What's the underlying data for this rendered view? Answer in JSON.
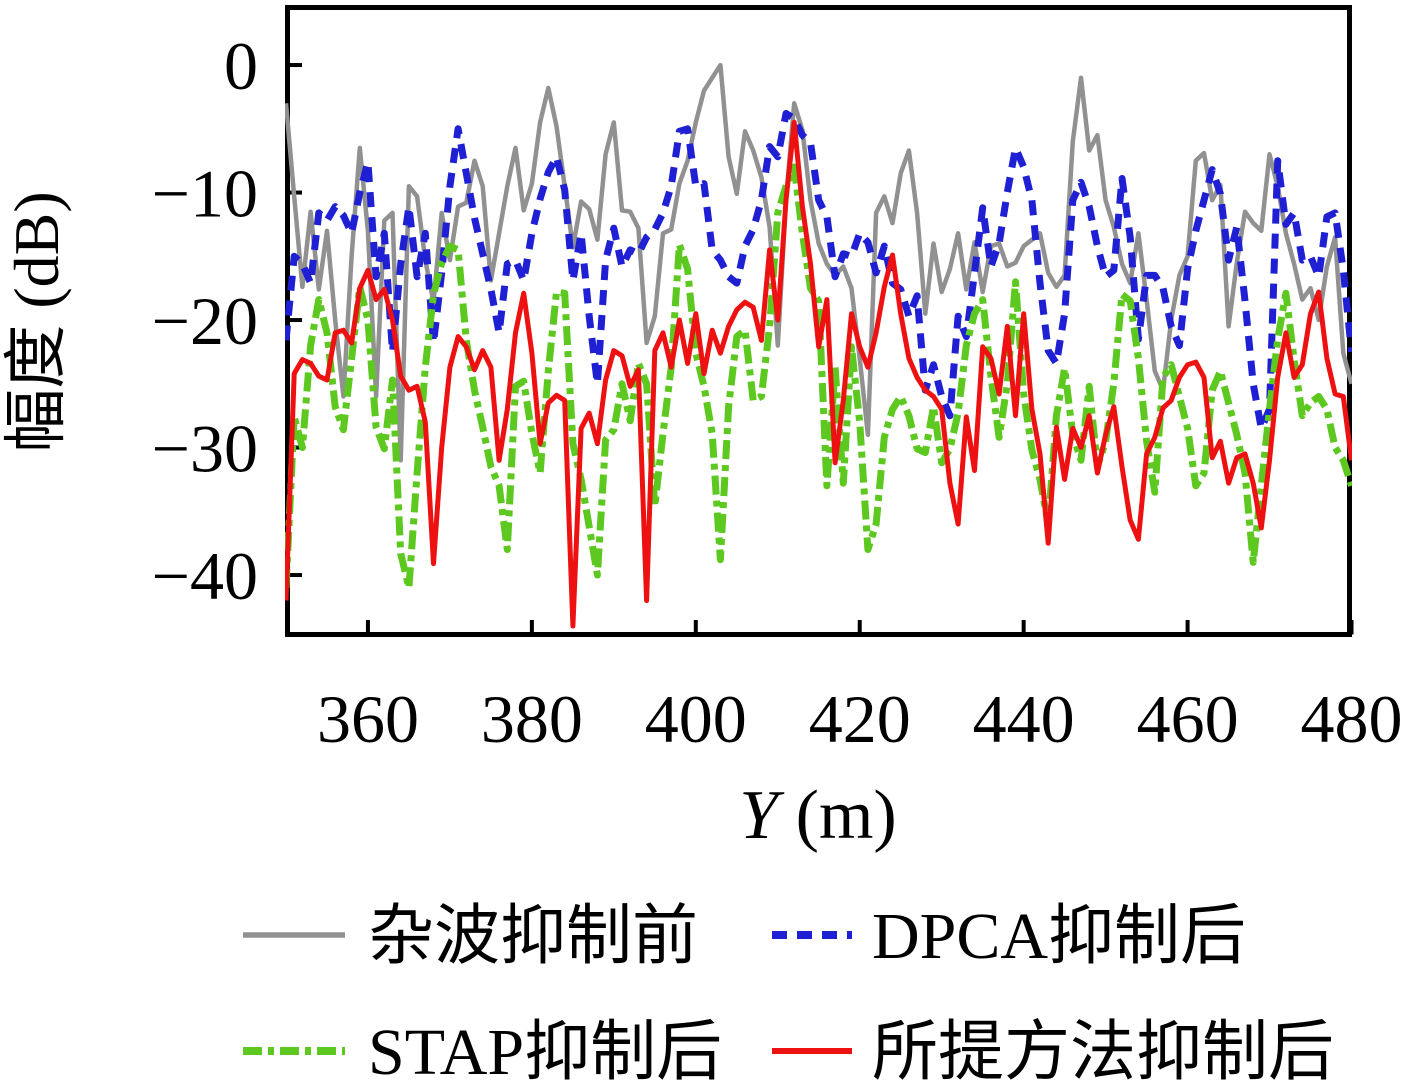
{
  "chart_data": {
    "type": "line",
    "title": "",
    "xlabel_italic": "Y",
    "xlabel_rest": " (m)",
    "ylabel": "幅度 (dB)",
    "xlim": [
      349.88,
      480.06
    ],
    "ylim": [
      -44.86,
      4.71
    ],
    "x_ticks": [
      360,
      380,
      400,
      420,
      440,
      460,
      480
    ],
    "x_tick_labels": [
      "360",
      "380",
      "400",
      "420",
      "440",
      "460",
      "480"
    ],
    "y_ticks": [
      0,
      -10,
      -20,
      -30,
      -40
    ],
    "y_tick_labels": [
      "0",
      "−10",
      "−20",
      "−30",
      "−40"
    ],
    "grid": false,
    "legend_position": "below-axis, 2 columns x 2 rows",
    "x_start": 350,
    "x_step": 1,
    "series": [
      {
        "name": "杂波抑制前",
        "color": "#919191",
        "style": "solid",
        "width": 4.5,
        "values": [
          -3,
          -10.3,
          -17.4,
          -11.5,
          -17.6,
          -13,
          -20,
          -26,
          -15,
          -6.5,
          -13,
          -26,
          -12.2,
          -11.6,
          -31,
          -9.5,
          -10.3,
          -15.3,
          -18.6,
          -11.6,
          -15.3,
          -11.1,
          -10.8,
          -7.5,
          -9.5,
          -16.9,
          -13.2,
          -9.5,
          -6.5,
          -11.4,
          -9.3,
          -4.5,
          -1.8,
          -4.8,
          -9.5,
          -14.3,
          -10.7,
          -11.3,
          -13.7,
          -7,
          -4.5,
          -11.4,
          -11.5,
          -12.8,
          -21.8,
          -19.7,
          -13.2,
          -12.9,
          -9.3,
          -7.5,
          -4.5,
          -2,
          -1,
          0,
          -7.2,
          -10.1,
          -5.2,
          -6.7,
          -8.8,
          -12.7,
          -22,
          -10.6,
          -3,
          -5.1,
          -10.6,
          -14,
          -15.6,
          -16.5,
          -15.8,
          -17.5,
          -23,
          -29,
          -11.6,
          -10.3,
          -12.4,
          -8.5,
          -6.7,
          -11.6,
          -19.5,
          -14,
          -17.8,
          -16,
          -13.2,
          -17.6,
          -13.9,
          -17.8,
          -14.2,
          -14,
          -15.8,
          -15.5,
          -14.2,
          -13.7,
          -13.2,
          -16.3,
          -17.4,
          -16.5,
          -6,
          -1,
          -6.7,
          -5.5,
          -10.6,
          -12.7,
          -15.6,
          -17.1,
          -13.2,
          -18.4,
          -24,
          -25.5,
          -20,
          -16.5,
          -15,
          -7.5,
          -6.9,
          -10.6,
          -9.4,
          -20.5,
          -15.5,
          -11.5,
          -12.4,
          -13,
          -7,
          -9.5,
          -13.2,
          -15.6,
          -18.4,
          -17.5,
          -20,
          -15.8,
          -13.5,
          -22.6,
          -25
        ]
      },
      {
        "name": "DPCA抑制后",
        "color": "#1f1fd3",
        "style": "dashed",
        "width": 7,
        "values": [
          -21.6,
          -15,
          -15.6,
          -17.1,
          -11.6,
          -12.2,
          -11.1,
          -11.8,
          -13.2,
          -10,
          -7.6,
          -16.6,
          -13.2,
          -22.5,
          -15.6,
          -11.1,
          -16.6,
          -13.2,
          -21.8,
          -16.3,
          -9.5,
          -5,
          -8.5,
          -12,
          -14.8,
          -17.6,
          -21,
          -15.6,
          -15.3,
          -16.9,
          -13.2,
          -10.5,
          -8.4,
          -7.2,
          -9.8,
          -16.9,
          -13.2,
          -19.7,
          -25,
          -15.3,
          -12.8,
          -15.8,
          -14.5,
          -14.8,
          -13.5,
          -12.9,
          -11.6,
          -9.5,
          -5.2,
          -5,
          -9.5,
          -9.3,
          -14.5,
          -15.3,
          -16.6,
          -17.1,
          -14.2,
          -12.9,
          -10.6,
          -6.4,
          -7.2,
          -3.8,
          -4.2,
          -5.5,
          -6.1,
          -10.6,
          -11.9,
          -16.6,
          -14.8,
          -15,
          -13.2,
          -13.9,
          -16.3,
          -14.2,
          -17.1,
          -17.6,
          -19.7,
          -18.1,
          -25.5,
          -23.5,
          -26,
          -27.5,
          -19.7,
          -21.3,
          -16.3,
          -11.2,
          -15.8,
          -14,
          -10,
          -6.5,
          -8,
          -10.6,
          -17.1,
          -22.4,
          -23.4,
          -19.5,
          -10.6,
          -9.2,
          -11.1,
          -14.2,
          -16.6,
          -16.1,
          -8.9,
          -13.5,
          -21.5,
          -16.5,
          -16.5,
          -17.5,
          -20.5,
          -22,
          -16,
          -13,
          -10.6,
          -8.2,
          -10.1,
          -15.3,
          -12.7,
          -18.5,
          -25,
          -28.5,
          -27,
          -7.5,
          -12.5,
          -11.6,
          -15.3,
          -15,
          -16.6,
          -11.9,
          -11.6,
          -16.1,
          -22.5
        ]
      },
      {
        "name": "STAP抑制后",
        "color": "#5dc81f",
        "style": "dashdot",
        "width": 7,
        "values": [
          -41,
          -27.6,
          -30,
          -22,
          -18.4,
          -21,
          -26.8,
          -28.6,
          -23,
          -17.4,
          -20,
          -28.4,
          -30.1,
          -24.7,
          -38.3,
          -41,
          -32,
          -23.7,
          -18,
          -15.5,
          -14.2,
          -14.5,
          -21.6,
          -25.5,
          -28.4,
          -31.5,
          -33,
          -38,
          -25.2,
          -24.8,
          -28.9,
          -32,
          -24,
          -17.8,
          -17.9,
          -29.7,
          -32.5,
          -36.2,
          -40,
          -29.4,
          -28.6,
          -25,
          -27.9,
          -23.4,
          -25,
          -34.6,
          -28.9,
          -23.7,
          -14.1,
          -16,
          -22.6,
          -25.2,
          -28.9,
          -38.8,
          -26.8,
          -21.3,
          -20.8,
          -26.3,
          -26,
          -20.5,
          -11.6,
          -9.5,
          -8,
          -13.2,
          -17.5,
          -18.5,
          -33,
          -23.7,
          -32.8,
          -22.1,
          -28,
          -38,
          -36,
          -29.2,
          -27,
          -26,
          -27.5,
          -30.1,
          -30.4,
          -26.8,
          -31.2,
          -30.1,
          -27.3,
          -22,
          -19.5,
          -18.4,
          -24.4,
          -29.2,
          -25,
          -17,
          -25.8,
          -30.2,
          -32.5,
          -36,
          -27.5,
          -23.8,
          -29,
          -31,
          -25.2,
          -31.5,
          -29.5,
          -25,
          -18,
          -18.5,
          -23,
          -29.5,
          -33.5,
          -24.5,
          -23.5,
          -26,
          -28.5,
          -33,
          -32,
          -25.5,
          -24,
          -26.5,
          -29,
          -32,
          -39,
          -33,
          -27,
          -21.5,
          -17.9,
          -23.1,
          -27.5,
          -26.5,
          -26,
          -27,
          -30,
          -31,
          -33
        ]
      },
      {
        "name": "所提方法抑制后",
        "color": "#ee1111",
        "style": "solid",
        "width": 5,
        "values": [
          -42,
          -24.2,
          -23.1,
          -23.4,
          -24.4,
          -24.7,
          -21,
          -20.8,
          -21.8,
          -17.5,
          -16.1,
          -18.4,
          -17.6,
          -20,
          -24.4,
          -25.5,
          -25.2,
          -28,
          -39.1,
          -30,
          -23.7,
          -21.3,
          -22.1,
          -23.9,
          -22.4,
          -23.7,
          -31,
          -27,
          -21,
          -17.9,
          -22.6,
          -29.7,
          -26.5,
          -25.9,
          -26.3,
          -44,
          -28.5,
          -27.3,
          -29.7,
          -24.7,
          -22.4,
          -22.8,
          -25.2,
          -23.9,
          -42,
          -22.4,
          -21,
          -23.7,
          -20,
          -23.4,
          -19.5,
          -24.2,
          -20.8,
          -22.6,
          -20.5,
          -19.2,
          -18.6,
          -19,
          -21.6,
          -14.5,
          -20,
          -10.6,
          -4.5,
          -11.1,
          -15.6,
          -22.1,
          -18.4,
          -31.2,
          -26.3,
          -19.5,
          -22.1,
          -23.7,
          -21,
          -17.4,
          -14.9,
          -19.5,
          -23,
          -24.5,
          -25.5,
          -26,
          -27,
          -32.8,
          -36,
          -27.6,
          -31.8,
          -22.1,
          -23,
          -25.8,
          -20.5,
          -27.5,
          -19.5,
          -27,
          -30.5,
          -37.5,
          -28.4,
          -32.5,
          -28.5,
          -30,
          -27.5,
          -32,
          -29,
          -26.8,
          -31.5,
          -35.7,
          -37.2,
          -30.5,
          -29.2,
          -26.9,
          -26.3,
          -24.5,
          -23.5,
          -23.3,
          -24.5,
          -30.8,
          -29.5,
          -32.8,
          -30.8,
          -30.5,
          -32.8,
          -36.3,
          -31,
          -24.5,
          -21,
          -24.5,
          -23.5,
          -19.5,
          -17.8,
          -23,
          -25.8,
          -26,
          -31
        ]
      }
    ]
  },
  "axes": {
    "plot_border_color": "#000000",
    "tick_color": "#000000"
  }
}
